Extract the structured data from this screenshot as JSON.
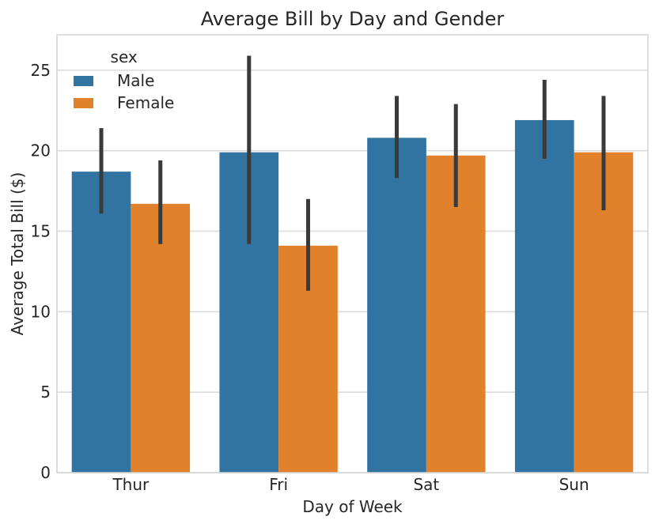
{
  "chart_data": {
    "type": "bar",
    "title": "Average Bill by Day and Gender",
    "xlabel": "Day of Week",
    "ylabel": "Average Total Bill ($)",
    "categories": [
      "Thur",
      "Fri",
      "Sat",
      "Sun"
    ],
    "series": [
      {
        "name": "Male",
        "color": "#3274a1",
        "values": [
          18.7,
          19.9,
          20.8,
          21.9
        ],
        "ci_low": [
          16.1,
          14.2,
          18.3,
          19.5
        ],
        "ci_high": [
          21.4,
          25.9,
          23.4,
          24.4
        ]
      },
      {
        "name": "Female",
        "color": "#e1812c",
        "values": [
          16.7,
          14.1,
          19.7,
          19.9
        ],
        "ci_low": [
          14.2,
          11.3,
          16.5,
          16.3
        ],
        "ci_high": [
          19.4,
          17.0,
          22.9,
          23.4
        ]
      }
    ],
    "legend": {
      "title": "sex",
      "position": "upper left"
    },
    "ylim": [
      0,
      27.2
    ],
    "yticks": [
      0,
      5,
      10,
      15,
      20,
      25
    ],
    "grid": true,
    "error_bar_color": "#3a3a3a",
    "axis_color": "#d5d5d5",
    "grid_color": "#dcdcdc",
    "text_color": "#262626"
  }
}
